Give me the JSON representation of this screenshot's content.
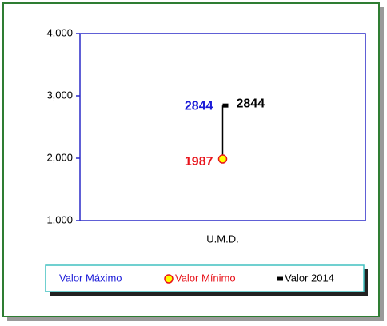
{
  "chart_data": {
    "type": "high-low",
    "categories": [
      "U.M.D."
    ],
    "series": [
      {
        "name": "Valor Máximo",
        "color": "#1c1cd8",
        "values": [
          2844
        ]
      },
      {
        "name": "Valor Mínimo",
        "color": "#e8141c",
        "marker_color": "#ffff00",
        "values": [
          1987
        ]
      },
      {
        "name": "Valor 2014",
        "color": "#000000",
        "values": [
          2844
        ]
      }
    ],
    "ylim": [
      1000,
      4000
    ],
    "yticks": [
      {
        "value": 1000,
        "label": "1,000"
      },
      {
        "value": 2000,
        "label": "2,000"
      },
      {
        "value": 3000,
        "label": "3,000"
      },
      {
        "value": 4000,
        "label": "4,000"
      }
    ],
    "axis_color": "#2b2bc8"
  }
}
